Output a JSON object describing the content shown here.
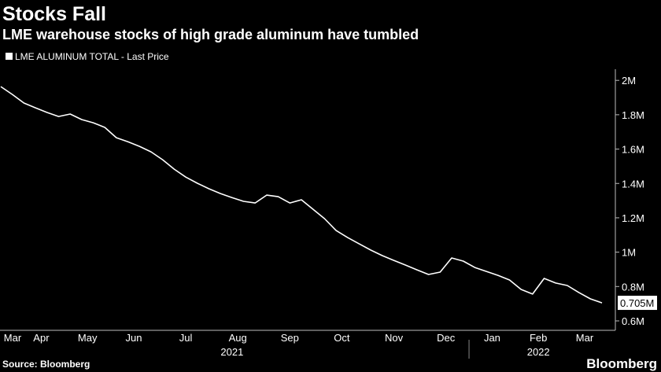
{
  "chart_data": {
    "type": "line",
    "title": "Stocks Fall",
    "subtitle": "LME warehouse stocks of high grade aluminum have tumbled",
    "source": "Source: Bloomberg",
    "brand": "Bloomberg",
    "x": [
      "2021-03",
      "2021-03",
      "2021-04",
      "2021-04",
      "2021-04",
      "2021-04",
      "2021-05",
      "2021-05",
      "2021-05",
      "2021-05",
      "2021-06",
      "2021-06",
      "2021-06",
      "2021-06",
      "2021-07",
      "2021-07",
      "2021-07",
      "2021-07",
      "2021-07",
      "2021-08",
      "2021-08",
      "2021-08",
      "2021-08",
      "2021-09",
      "2021-09",
      "2021-09",
      "2021-09",
      "2021-09",
      "2021-10",
      "2021-10",
      "2021-10",
      "2021-10",
      "2021-11",
      "2021-11",
      "2021-11",
      "2021-11",
      "2021-11",
      "2021-12",
      "2021-12",
      "2021-12",
      "2021-12",
      "2022-01",
      "2022-01",
      "2022-01",
      "2022-01",
      "2022-02",
      "2022-02",
      "2022-02",
      "2022-02",
      "2022-03",
      "2022-03",
      "2022-03",
      "2022-03"
    ],
    "series": [
      {
        "name": "LME ALUMINUM TOTAL - Last Price",
        "color": "#ffffff",
        "values": [
          1964000,
          1918000,
          1868000,
          1840000,
          1813000,
          1790000,
          1804000,
          1772000,
          1753000,
          1726000,
          1666000,
          1643000,
          1616000,
          1584000,
          1538000,
          1483000,
          1437000,
          1401000,
          1369000,
          1341000,
          1318000,
          1296000,
          1286000,
          1332000,
          1323000,
          1286000,
          1305000,
          1250000,
          1195000,
          1126000,
          1085000,
          1048000,
          1012000,
          980000,
          952000,
          925000,
          897000,
          870000,
          884000,
          966000,
          948000,
          911000,
          888000,
          865000,
          838000,
          783000,
          756000,
          847000,
          820000,
          806000,
          765000,
          728000,
          705000
        ],
        "value_labels": [
          null,
          null,
          null,
          null,
          null,
          null,
          null,
          null,
          null,
          null,
          null,
          null,
          null,
          null,
          null,
          null,
          null,
          null,
          null,
          null,
          null,
          null,
          null,
          null,
          null,
          null,
          null,
          null,
          null,
          null,
          null,
          null,
          null,
          null,
          null,
          null,
          null,
          null,
          null,
          null,
          null,
          null,
          null,
          null,
          null,
          null,
          null,
          null,
          null,
          null,
          null,
          null,
          "0.705M"
        ]
      }
    ],
    "xticks": [
      {
        "value": "2021-03",
        "label": "Mar"
      },
      {
        "value": "2021-04",
        "label": "Apr"
      },
      {
        "value": "2021-05",
        "label": "May"
      },
      {
        "value": "2021-06",
        "label": "Jun"
      },
      {
        "value": "2021-07",
        "label": "Jul"
      },
      {
        "value": "2021-08",
        "label": "Aug"
      },
      {
        "value": "2021-09",
        "label": "Sep"
      },
      {
        "value": "2021-10",
        "label": "Oct"
      },
      {
        "value": "2021-11",
        "label": "Nov"
      },
      {
        "value": "2021-12",
        "label": "Dec"
      },
      {
        "value": "2022-01",
        "label": "Jan"
      },
      {
        "value": "2022-02",
        "label": "Feb"
      },
      {
        "value": "2022-03",
        "label": "Mar"
      }
    ],
    "years": [
      "2021",
      "2022"
    ],
    "ylim": [
      545000,
      2065000
    ],
    "yticks": [
      {
        "value": 600000,
        "label": "0.6M"
      },
      {
        "value": 800000,
        "label": "0.8M"
      },
      {
        "value": 1000000,
        "label": "1M"
      },
      {
        "value": 1200000,
        "label": "1.2M"
      },
      {
        "value": 1400000,
        "label": "1.4M"
      },
      {
        "value": 1600000,
        "label": "1.6M"
      },
      {
        "value": 1800000,
        "label": "1.8M"
      },
      {
        "value": 2000000,
        "label": "2M"
      }
    ],
    "y_axis_side": "right",
    "grid": false
  }
}
